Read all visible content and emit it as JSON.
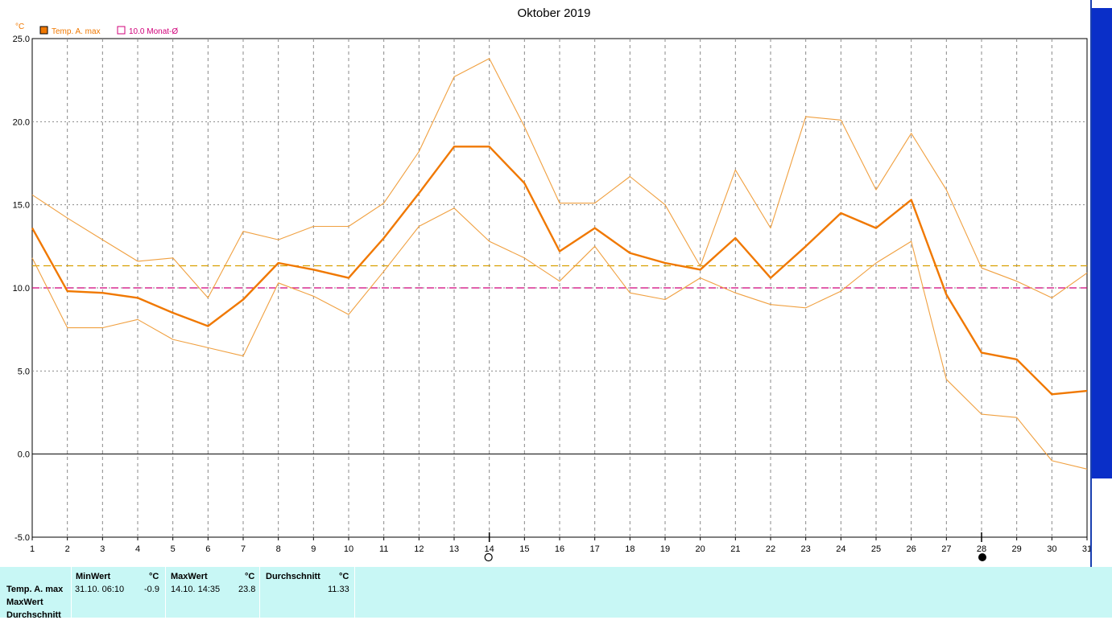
{
  "chart_data": {
    "type": "line",
    "title": "Oktober 2019",
    "y_unit": "°C",
    "ylim": [
      -5,
      25
    ],
    "y_ticks": [
      "25.0",
      "20.0",
      "15.0",
      "10.0",
      "5.0",
      "0.0",
      "-5.0"
    ],
    "x": [
      1,
      2,
      3,
      4,
      5,
      6,
      7,
      8,
      9,
      10,
      11,
      12,
      13,
      14,
      15,
      16,
      17,
      18,
      19,
      20,
      21,
      22,
      23,
      24,
      25,
      26,
      27,
      28,
      29,
      30,
      31
    ],
    "legend": [
      {
        "label": "Temp. A. max",
        "color": "#f07800"
      },
      {
        "label": "10.0 Monat-Ø",
        "color": "#d0007a"
      }
    ],
    "series": [
      {
        "name": "Temp. A. max",
        "role": "main",
        "values": [
          13.6,
          9.8,
          9.7,
          9.4,
          8.5,
          7.7,
          9.3,
          11.5,
          11.1,
          10.6,
          13.0,
          15.7,
          18.5,
          18.5,
          16.3,
          12.2,
          13.6,
          12.1,
          11.5,
          11.1,
          13.0,
          10.6,
          12.5,
          14.5,
          13.6,
          15.3,
          9.6,
          6.1,
          5.7,
          3.6,
          3.8
        ]
      },
      {
        "role": "upper-band",
        "values": [
          15.6,
          14.2,
          12.9,
          11.6,
          11.8,
          9.4,
          13.4,
          12.9,
          13.7,
          13.7,
          15.1,
          18.2,
          22.7,
          23.8,
          19.7,
          15.1,
          15.1,
          16.7,
          15.0,
          11.3,
          17.1,
          13.6,
          20.3,
          20.1,
          15.9,
          19.3,
          15.9,
          11.2,
          10.4,
          9.4,
          10.9
        ]
      },
      {
        "role": "lower-band",
        "values": [
          11.8,
          7.6,
          7.6,
          8.1,
          6.9,
          6.4,
          5.9,
          10.3,
          9.5,
          8.4,
          11.0,
          13.7,
          14.8,
          12.8,
          11.8,
          10.4,
          12.5,
          9.7,
          9.3,
          10.6,
          9.7,
          9.0,
          8.8,
          9.8,
          11.5,
          12.8,
          4.5,
          2.4,
          2.2,
          -0.4,
          -0.9
        ]
      }
    ],
    "reference_lines": [
      {
        "value": 11.33,
        "color": "#d8a000",
        "style": "dashed"
      },
      {
        "value": 10.0,
        "color": "#d0007a",
        "style": "dashed"
      }
    ],
    "markers": [
      {
        "x": 14,
        "symbol": "open-circle"
      },
      {
        "x": 28,
        "symbol": "filled-circle"
      }
    ],
    "grid": true,
    "legend_position": "top-left",
    "colors": {
      "main": "#f07800",
      "band": "#f0a040",
      "avg": "#d8a000",
      "month_avg": "#d0007a",
      "panel_bg": "#c8f7f5"
    }
  },
  "stats": {
    "row_labels": [
      "Temp. A. max",
      "MaxWert",
      "Durchschnitt"
    ],
    "columns": [
      {
        "header": "MinWert",
        "unit": "°C",
        "stamp": "31.10.  06:10",
        "value": "-0.9"
      },
      {
        "header": "MaxWert",
        "unit": "°C",
        "stamp": "14.10.  14:35",
        "value": "23.8"
      },
      {
        "header": "Durchschnitt",
        "unit": "°C",
        "stamp": "",
        "value": "11.33"
      }
    ]
  }
}
